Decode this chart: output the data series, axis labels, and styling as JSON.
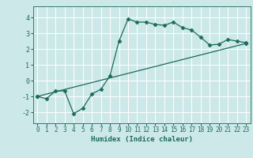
{
  "xlabel": "Humidex (Indice chaleur)",
  "ylabel": "",
  "background_color": "#cde8e8",
  "line_color": "#1a6b5a",
  "grid_color": "#ffffff",
  "xlim": [
    -0.5,
    23.5
  ],
  "ylim": [
    -2.7,
    4.7
  ],
  "xticks": [
    0,
    1,
    2,
    3,
    4,
    5,
    6,
    7,
    8,
    9,
    10,
    11,
    12,
    13,
    14,
    15,
    16,
    17,
    18,
    19,
    20,
    21,
    22,
    23
  ],
  "yticks": [
    -2,
    -1,
    0,
    1,
    2,
    3,
    4
  ],
  "curve1_x": [
    0,
    1,
    2,
    3,
    4,
    5,
    6,
    7,
    8,
    9,
    10,
    11,
    12,
    13,
    14,
    15,
    16,
    17,
    18,
    19,
    20,
    21,
    22,
    23
  ],
  "curve1_y": [
    -1.0,
    -1.15,
    -0.65,
    -0.65,
    -2.1,
    -1.75,
    -0.85,
    -0.55,
    0.3,
    2.5,
    3.9,
    3.7,
    3.7,
    3.55,
    3.5,
    3.7,
    3.35,
    3.2,
    2.75,
    2.25,
    2.3,
    2.6,
    2.5,
    2.4
  ],
  "curve2_x": [
    0,
    23
  ],
  "curve2_y": [
    -1.0,
    2.35
  ],
  "marker": "D",
  "markersize": 2.5,
  "linewidth": 0.9,
  "tick_fontsize": 5.5,
  "xlabel_fontsize": 6.5
}
